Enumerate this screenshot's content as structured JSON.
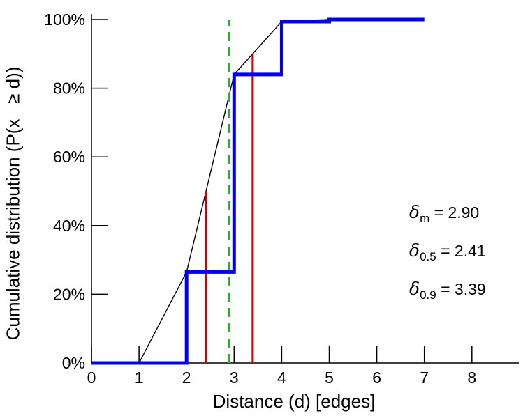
{
  "chart_data": {
    "type": "line",
    "title": "",
    "xlabel": "Distance (d) [edges]",
    "ylabel": "Cumulative distribution (P(x   ≥ d))",
    "xlim": [
      0,
      9
    ],
    "ylim": [
      0,
      100
    ],
    "grid": false,
    "legend": "none",
    "x_ticks": [
      0,
      1,
      2,
      3,
      4,
      5,
      6,
      7,
      8
    ],
    "x_tick_labels": [
      "0",
      "1",
      "2",
      "3",
      "4",
      "5",
      "6",
      "7",
      "8"
    ],
    "y_ticks": [
      0,
      20,
      40,
      60,
      80,
      100
    ],
    "y_tick_labels": [
      "0%",
      "20%",
      "40%",
      "60%",
      "80%",
      "100%"
    ],
    "series": [
      {
        "name": "linear-interpolation",
        "type": "line",
        "color": "#000000",
        "stroke_width": 1.4,
        "x": [
          1,
          2,
          3,
          4,
          5
        ],
        "y": [
          0,
          26.5,
          84,
          99.4,
          100
        ]
      },
      {
        "name": "empirical-cdf",
        "type": "step",
        "color": "#0000ee",
        "stroke_width": 5,
        "x": [
          0,
          2,
          3,
          4,
          5,
          7
        ],
        "y": [
          0,
          26.5,
          84,
          99.4,
          100,
          100
        ]
      }
    ],
    "markers": [
      {
        "name": "median-distance",
        "style": "solid",
        "color": "#cc0000",
        "x": 2.41,
        "y_top": 50
      },
      {
        "name": "p90-distance",
        "style": "solid",
        "color": "#cc0000",
        "x": 3.39,
        "y_top": 90
      },
      {
        "name": "mean-distance",
        "style": "dashed",
        "color": "#00cc00",
        "x": 2.9,
        "y_top": 100
      }
    ],
    "annotations": [
      {
        "symbol": "δ",
        "sub": "m",
        "text": " = 2.90"
      },
      {
        "symbol": "δ",
        "sub": "0.5",
        "text": " = 2.41"
      },
      {
        "symbol": "δ",
        "sub": "0.9",
        "text": " = 3.39"
      }
    ]
  }
}
